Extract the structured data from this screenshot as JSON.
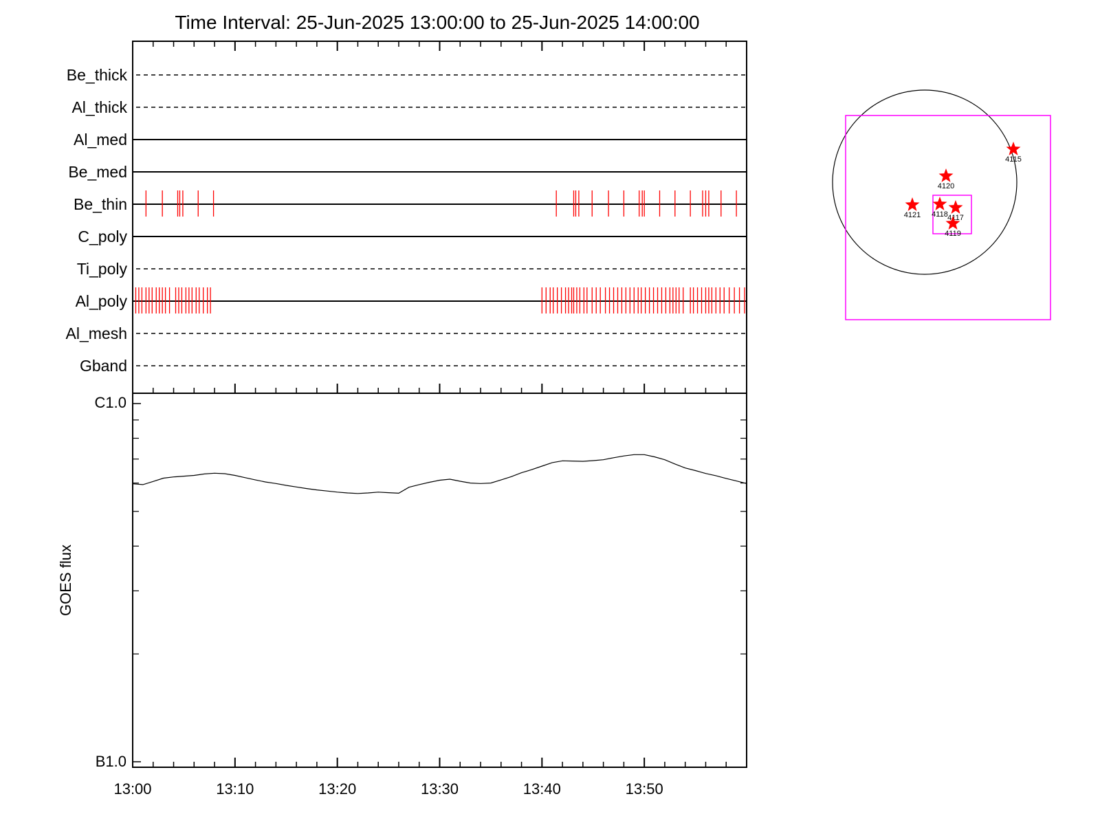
{
  "title": "Time Interval: 25-Jun-2025 13:00:00 to 25-Jun-2025 14:00:00",
  "colors": {
    "axes": "#000000",
    "events": "#ff0000",
    "fov": "#ff00ff",
    "curve": "#000000",
    "sun": "#000000"
  },
  "chart_data": [
    {
      "type": "line",
      "x_units": "minutes after 13:00",
      "xlim": [
        0,
        60
      ],
      "x_tick_labels": [
        "13:00",
        "13:10",
        "13:20",
        "13:30",
        "13:40",
        "13:50"
      ],
      "x_tick_values": [
        0,
        10,
        20,
        30,
        40,
        50
      ],
      "channels": [
        {
          "name": "Be_thick",
          "style": "dashed",
          "events": []
        },
        {
          "name": "Al_thick",
          "style": "dashed",
          "events": []
        },
        {
          "name": "Al_med",
          "style": "solid",
          "events": []
        },
        {
          "name": "Be_med",
          "style": "solid",
          "events": []
        },
        {
          "name": "Be_thin",
          "style": "solid",
          "events": [
            1.3,
            2.9,
            4.4,
            4.6,
            4.9,
            6.4,
            7.9,
            41.4,
            43.1,
            43.3,
            43.6,
            44.9,
            46.5,
            48.0,
            49.5,
            49.8,
            50.0,
            51.5,
            53.0,
            54.5,
            55.7,
            56.0,
            56.3,
            57.5,
            59.0
          ]
        },
        {
          "name": "C_poly",
          "style": "solid",
          "events": []
        },
        {
          "name": "Ti_poly",
          "style": "dashed",
          "events": []
        },
        {
          "name": "Al_poly",
          "style": "solid",
          "events": [
            0.3,
            0.6,
            0.9,
            1.3,
            1.6,
            1.9,
            2.3,
            2.6,
            2.9,
            3.2,
            3.6,
            4.2,
            4.5,
            4.8,
            5.2,
            5.5,
            5.8,
            6.2,
            6.5,
            6.9,
            7.3,
            7.6,
            40.0,
            40.4,
            40.8,
            41.1,
            41.5,
            41.9,
            42.3,
            42.6,
            42.9,
            43.1,
            43.4,
            43.7,
            44.1,
            44.4,
            44.9,
            45.3,
            45.7,
            46.2,
            46.6,
            47.0,
            47.4,
            47.8,
            48.2,
            48.6,
            49.0,
            49.4,
            49.7,
            50.1,
            50.5,
            50.9,
            51.3,
            51.7,
            52.1,
            52.5,
            52.8,
            53.1,
            53.4,
            53.8,
            54.5,
            54.8,
            55.2,
            55.6,
            56.0,
            56.3,
            56.6,
            57.0,
            57.4,
            57.8,
            58.3,
            58.8,
            59.3,
            59.8
          ]
        },
        {
          "name": "Al_mesh",
          "style": "dashed",
          "events": []
        },
        {
          "name": "Gband",
          "style": "dashed",
          "events": []
        }
      ]
    },
    {
      "type": "line",
      "ylabel": "GOES flux",
      "y_scale": "log",
      "ylim": [
        1e-07,
        1e-06
      ],
      "y_tick_labels": [
        "C1.0",
        "B1.0"
      ],
      "x_units": "minutes after 13:00",
      "xlim": [
        0,
        60
      ],
      "x_tick_labels": [
        "13:00",
        "13:10",
        "13:20",
        "13:30",
        "13:40",
        "13:50"
      ],
      "x_tick_values": [
        0,
        10,
        20,
        30,
        40,
        50
      ],
      "series": [
        {
          "x": [
            0,
            1,
            2,
            3,
            4,
            5,
            6,
            7,
            8,
            9,
            10,
            11,
            12,
            13,
            14,
            15,
            16,
            17,
            18,
            19,
            20,
            21,
            22,
            23,
            24,
            25,
            26,
            27,
            28,
            29,
            30,
            31,
            32,
            33,
            34,
            35,
            36,
            37,
            38,
            39,
            40,
            41,
            42,
            43,
            44,
            45,
            46,
            47,
            48,
            49,
            50,
            51,
            52,
            53,
            54,
            55,
            56,
            57,
            58,
            59,
            60
          ],
          "y": [
            5.97e-07,
            5.94e-07,
            6.06e-07,
            6.19e-07,
            6.24e-07,
            6.27e-07,
            6.3e-07,
            6.36e-07,
            6.39e-07,
            6.37e-07,
            6.3e-07,
            6.21e-07,
            6.12e-07,
            6.04e-07,
            5.98e-07,
            5.91e-07,
            5.85e-07,
            5.79e-07,
            5.74e-07,
            5.7e-07,
            5.66e-07,
            5.63e-07,
            5.61e-07,
            5.63e-07,
            5.66e-07,
            5.64e-07,
            5.62e-07,
            5.84e-07,
            5.94e-07,
            6.03e-07,
            6.11e-07,
            6.15e-07,
            6.07e-07,
            6e-07,
            5.98e-07,
            6e-07,
            6.12e-07,
            6.25e-07,
            6.41e-07,
            6.54e-07,
            6.69e-07,
            6.84e-07,
            6.92e-07,
            6.91e-07,
            6.9e-07,
            6.93e-07,
            6.97e-07,
            7.06e-07,
            7.14e-07,
            7.2e-07,
            7.2e-07,
            7.1e-07,
            6.97e-07,
            6.78e-07,
            6.61e-07,
            6.5e-07,
            6.38e-07,
            6.29e-07,
            6.18e-07,
            6.08e-07,
            5.98e-07
          ]
        }
      ]
    }
  ],
  "locator": {
    "markers": [
      {
        "label": "4115"
      },
      {
        "label": "4120"
      },
      {
        "label": "4121"
      },
      {
        "label": "4118"
      },
      {
        "label": "4117"
      },
      {
        "label": "4119"
      }
    ]
  }
}
